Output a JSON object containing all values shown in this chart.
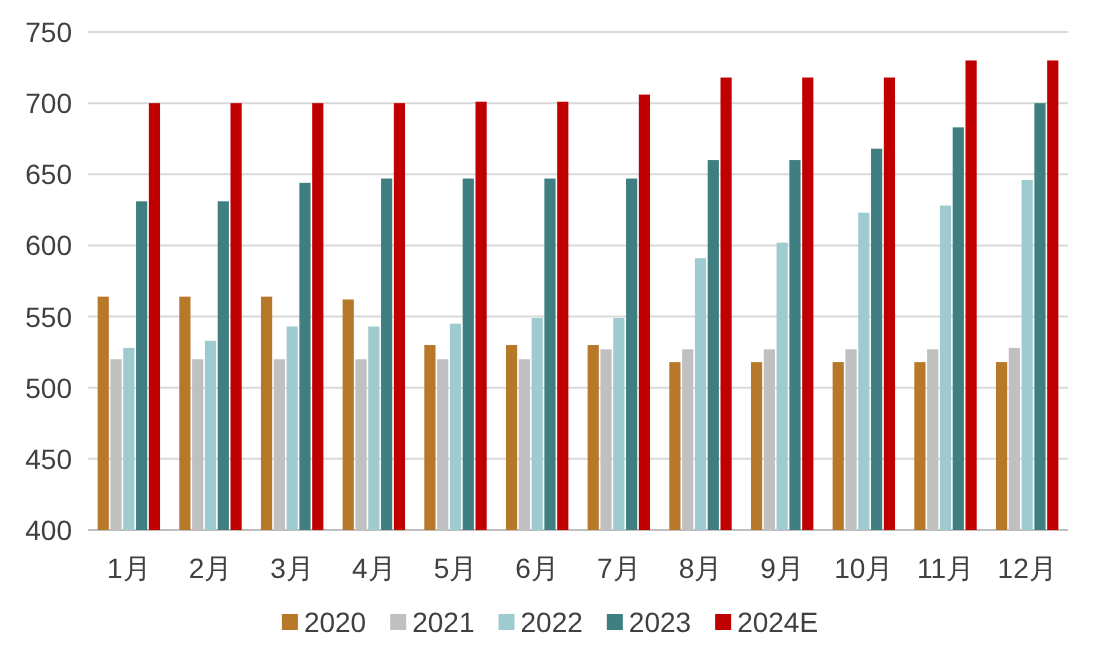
{
  "chart_data": {
    "type": "bar",
    "categories": [
      "1月",
      "2月",
      "3月",
      "4月",
      "5月",
      "6月",
      "7月",
      "8月",
      "9月",
      "10月",
      "11月",
      "12月"
    ],
    "series": [
      {
        "name": "2020",
        "color": "#b8782a",
        "values": [
          564,
          564,
          564,
          562,
          530,
          530,
          530,
          518,
          518,
          518,
          518,
          518
        ]
      },
      {
        "name": "2021",
        "color": "#c0c0c0",
        "values": [
          520,
          520,
          520,
          520,
          520,
          520,
          527,
          527,
          527,
          527,
          527,
          528
        ]
      },
      {
        "name": "2022",
        "color": "#9ecbcf",
        "values": [
          528,
          533,
          543,
          543,
          545,
          549,
          549,
          591,
          602,
          623,
          628,
          646
        ]
      },
      {
        "name": "2023",
        "color": "#3f7f82",
        "values": [
          631,
          631,
          644,
          647,
          647,
          647,
          647,
          660,
          660,
          668,
          683,
          700
        ]
      },
      {
        "name": "2024E",
        "color": "#c00000",
        "values": [
          700,
          700,
          700,
          700,
          701,
          701,
          706,
          718,
          718,
          718,
          730,
          730
        ]
      }
    ],
    "ylim": [
      400,
      750
    ],
    "yticks": [
      400,
      450,
      500,
      550,
      600,
      650,
      700,
      750
    ],
    "grid": "y",
    "legend": "bottom"
  }
}
